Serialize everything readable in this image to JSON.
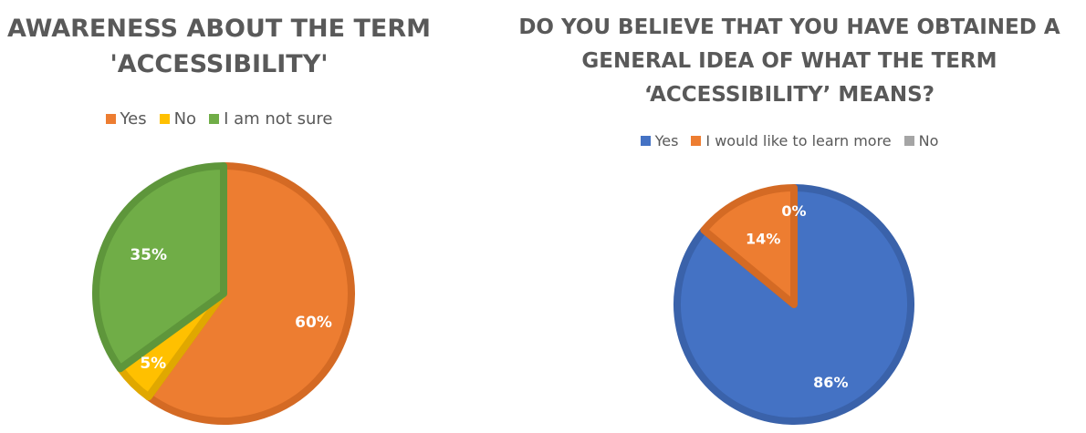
{
  "chart_data": [
    {
      "type": "pie",
      "title_lines": [
        "AWARENESS ABOUT THE TERM",
        "'ACCESSIBILITY'"
      ],
      "legend_position": "top",
      "slices": [
        {
          "label": "Yes",
          "value": 60,
          "value_label": "60%",
          "color": "#ED7D31",
          "border": "#D46A24"
        },
        {
          "label": "No",
          "value": 5,
          "value_label": "5%",
          "color": "#FFC000",
          "border": "#E0A800"
        },
        {
          "label": "I am not sure",
          "value": 35,
          "value_label": "35%",
          "color": "#70AD47",
          "border": "#5E963B"
        }
      ]
    },
    {
      "type": "pie",
      "title_lines": [
        "DO YOU BELIEVE THAT YOU HAVE OBTAINED A",
        "GENERAL IDEA OF WHAT THE TERM",
        "‘ACCESSIBILITY’ MEANS?"
      ],
      "legend_position": "top",
      "slices": [
        {
          "label": "Yes",
          "value": 86,
          "value_label": "86%",
          "color": "#4472C4",
          "border": "#3A62AA"
        },
        {
          "label": "I would like to learn more",
          "value": 14,
          "value_label": "14%",
          "color": "#ED7D31",
          "border": "#D46A24"
        },
        {
          "label": "No",
          "value": 0,
          "value_label": "0%",
          "color": "#A5A5A5",
          "border": "#8C8C8C"
        }
      ]
    }
  ]
}
